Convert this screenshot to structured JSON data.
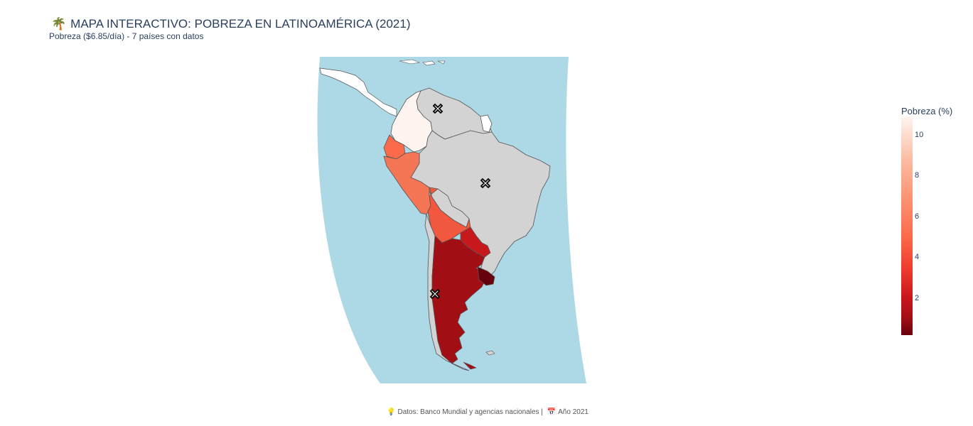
{
  "header": {
    "title_icon": "palm-tree-icon",
    "title_emoji": "🌴",
    "title": "MAPA INTERACTIVO: POBREZA EN LATINOAMÉRICA (2021)",
    "subtitle": "Pobreza ($6.85/día) - 7 países con datos"
  },
  "map_data": {
    "metric": "Pobreza (%)",
    "countries_with_data": [
      {
        "name": "Colombia",
        "color": "#fff5f0"
      },
      {
        "name": "Ecuador",
        "color": "#fb6a4a"
      },
      {
        "name": "Peru",
        "color": "#f57655"
      },
      {
        "name": "Bolivia",
        "color": "#f2583e"
      },
      {
        "name": "Paraguay",
        "color": "#c8181c"
      },
      {
        "name": "Argentina",
        "color": "#a10f14"
      },
      {
        "name": "Uruguay",
        "color": "#67000d"
      }
    ],
    "no_data_color": "#d3d3d3",
    "ocean_color": "#add8e6",
    "markers": [
      "Venezuela",
      "Brasil",
      "Chile"
    ]
  },
  "colorbar": {
    "title": "Pobreza (%)",
    "ticks": [
      "10",
      "8",
      "6",
      "4",
      "2"
    ],
    "range": [
      0.1,
      11
    ],
    "colorscale": "reds-reversed"
  },
  "footer": {
    "icon1": "lightbulb-icon",
    "icon1_glyph": "💡",
    "text1": "Datos: Banco Mundial y agencias nacionales |",
    "icon2": "calendar-icon",
    "icon2_glyph": "📅",
    "text2": "Año 2021"
  }
}
